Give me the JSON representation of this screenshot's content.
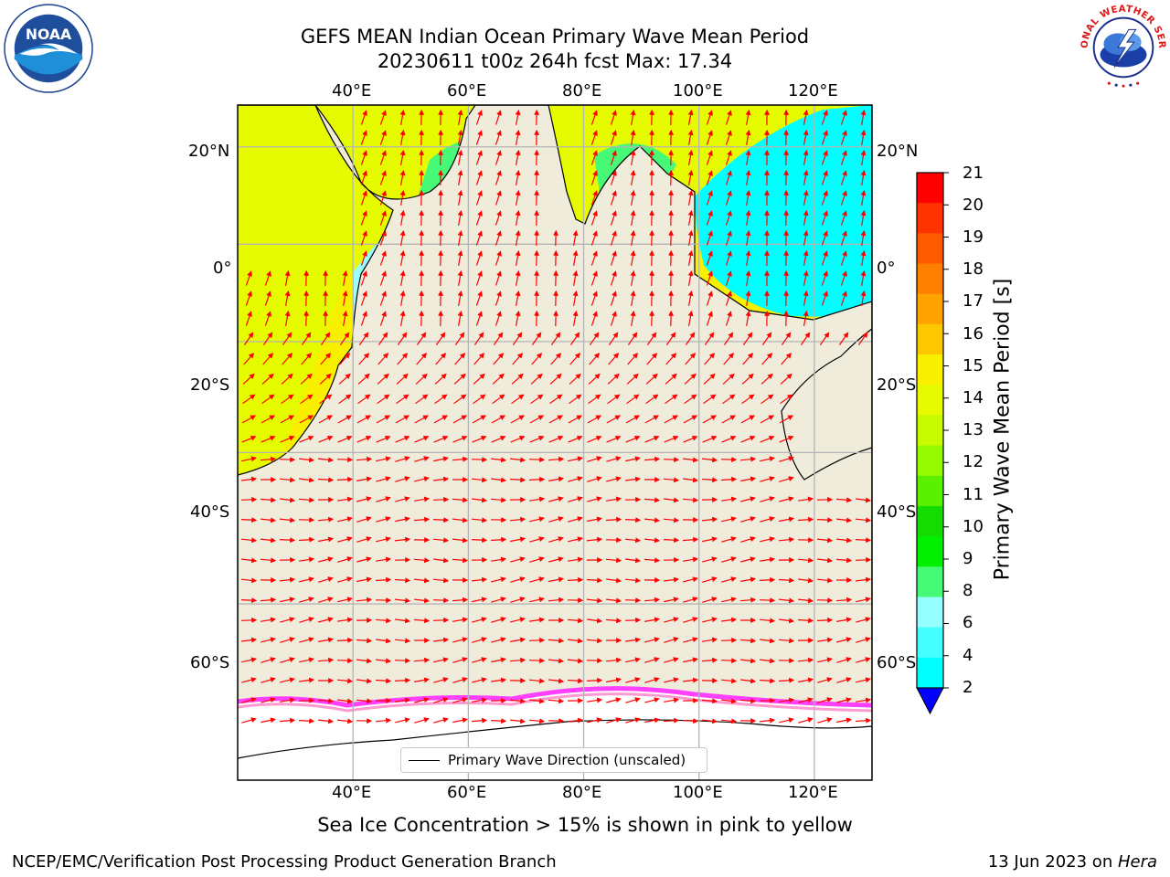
{
  "header": {
    "title_line1": "GEFS MEAN Indian Ocean Primary Wave Mean Period",
    "title_line2": "20230611 t00z 264h fcst   Max: 17.34"
  },
  "logos": {
    "left": "noaa-logo",
    "left_text": "NOAA",
    "right": "national-weather-service-logo",
    "right_text": "NATIONAL WEATHER SERVICE"
  },
  "map": {
    "projection": "cylindrical",
    "lon_range": [
      20,
      130
    ],
    "lat_range": [
      -74,
      28
    ],
    "grid": true,
    "top_lon_labels": [
      "40°E",
      "60°E",
      "80°E",
      "100°E",
      "120°E"
    ],
    "bottom_lon_labels": [
      "40°E",
      "60°E",
      "80°E",
      "100°E",
      "120°E"
    ],
    "left_lat_labels": [
      "20°N",
      "0°",
      "20°S",
      "40°S",
      "60°S"
    ],
    "right_lat_labels": [
      "20°N",
      "0°",
      "20°S",
      "40°S",
      "60°S"
    ],
    "colors": {
      "land": "#efecdc",
      "sea_ice": "#ffffff",
      "sea_ice_edge": [
        "#ff40ff",
        "#ff9ad0",
        "#ffd040"
      ],
      "vectors": "#ff0000",
      "grid": "#b4b4b4"
    }
  },
  "colorbar": {
    "label": "Primary Wave Mean Period [s]",
    "ticks": [
      "21",
      "20",
      "19",
      "18",
      "17",
      "16",
      "15",
      "14",
      "13",
      "12",
      "11",
      "10",
      "9",
      "8",
      "6",
      "4",
      "2"
    ],
    "colors": [
      "#fe0000",
      "#fe3300",
      "#fe5a00",
      "#fe8000",
      "#fea300",
      "#fec800",
      "#f9f000",
      "#e6fa00",
      "#c8fa00",
      "#96fa00",
      "#5af000",
      "#14dc00",
      "#00f000",
      "#46fa78",
      "#96ffff",
      "#46ffff",
      "#00ffff",
      "#00b4ff"
    ],
    "extend_color": "#0000ff"
  },
  "legend": {
    "text": "Primary Wave Direction (unscaled)"
  },
  "caption": "Sea Ice Concentration > 15% is shown in pink to yellow",
  "footer": {
    "left": "NCEP/EMC/Verification Post Processing Product Generation Branch",
    "right_prefix": "13 Jun 2023 on ",
    "right_machine": "Hera"
  }
}
